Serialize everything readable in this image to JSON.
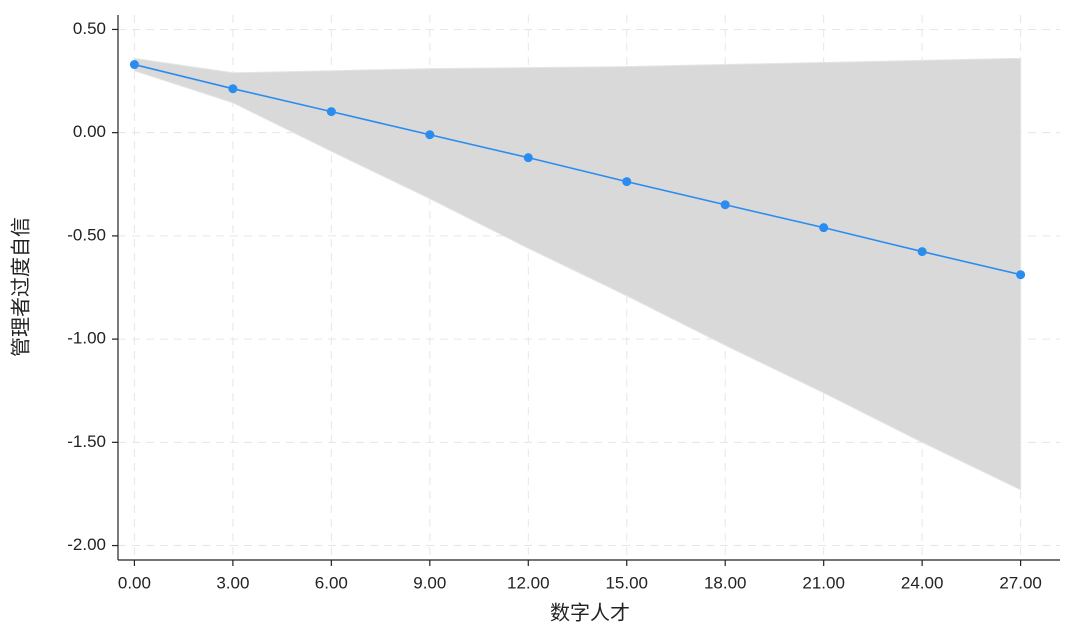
{
  "chart_data": {
    "type": "line",
    "x_label": "数字人才",
    "y_label": "管理者过度自信",
    "x": [
      0,
      3,
      6,
      9,
      12,
      15,
      18,
      21,
      24,
      27
    ],
    "values": [
      0.33,
      0.213,
      0.102,
      -0.01,
      -0.121,
      -0.237,
      -0.349,
      -0.46,
      -0.576,
      -0.688
    ],
    "ci_upper": [
      0.36,
      0.29,
      0.3,
      0.31,
      0.315,
      0.32,
      0.33,
      0.34,
      0.35,
      0.36
    ],
    "ci_lower": [
      0.3,
      0.145,
      -0.09,
      -0.32,
      -0.56,
      -0.79,
      -1.03,
      -1.26,
      -1.5,
      -1.73
    ],
    "color": "#2b8cf0",
    "band_color": "#d9d9d9",
    "xlim": [
      -0.5,
      28.2
    ],
    "ylim": [
      -2.07,
      0.57
    ],
    "xticks": [
      {
        "value": 0,
        "label": "0.00"
      },
      {
        "value": 3,
        "label": "3.00"
      },
      {
        "value": 6,
        "label": "6.00"
      },
      {
        "value": 9,
        "label": "9.00"
      },
      {
        "value": 12,
        "label": "12.00"
      },
      {
        "value": 15,
        "label": "15.00"
      },
      {
        "value": 18,
        "label": "18.00"
      },
      {
        "value": 21,
        "label": "21.00"
      },
      {
        "value": 24,
        "label": "24.00"
      },
      {
        "value": 27,
        "label": "27.00"
      }
    ],
    "yticks": [
      {
        "value": 0.5,
        "label": "0.50"
      },
      {
        "value": 0,
        "label": "0.00"
      },
      {
        "value": -0.5,
        "label": "-0.50"
      },
      {
        "value": -1,
        "label": "-1.00"
      },
      {
        "value": -1.5,
        "label": "-1.50"
      },
      {
        "value": -2,
        "label": "-2.00"
      }
    ],
    "grid": true
  }
}
